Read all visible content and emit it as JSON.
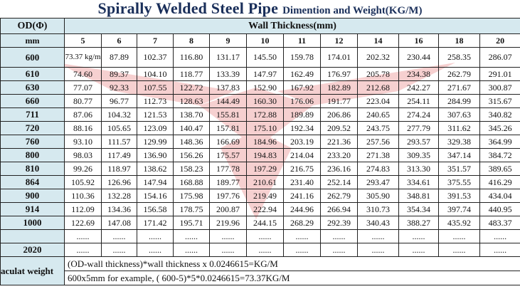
{
  "title": {
    "main": "Spirally Welded Steel Pipe",
    "sub": "Dimention and Weight(KG/M)"
  },
  "table": {
    "od_header": "OD(Φ)",
    "od_unit": "mm",
    "wall_header": "Wall Thickness(mm)",
    "wall_sizes": [
      "5",
      "6",
      "7",
      "8",
      "9",
      "10",
      "11",
      "12",
      "14",
      "16",
      "18",
      "20"
    ],
    "rows": [
      {
        "od": "600",
        "values": [
          "73.37 kg/m",
          "87.89",
          "102.37",
          "116.80",
          "131.17",
          "145.50",
          "159.78",
          "174.01",
          "202.32",
          "230.44",
          "258.35",
          "286.07"
        ]
      },
      {
        "od": "610",
        "values": [
          "74.60",
          "89.37",
          "104.10",
          "118.77",
          "133.39",
          "147.97",
          "162.49",
          "176.97",
          "205.78",
          "234.38",
          "262.79",
          "291.01"
        ]
      },
      {
        "od": "630",
        "values": [
          "77.07",
          "92.33",
          "107.55",
          "122.72",
          "137.83",
          "152.90",
          "167.92",
          "182.89",
          "212.68",
          "242.27",
          "271.67",
          "300.87"
        ]
      },
      {
        "od": "660",
        "values": [
          "80.77",
          "96.77",
          "112.73",
          "128.63",
          "144.49",
          "160.30",
          "176.06",
          "191.77",
          "223.04",
          "254.11",
          "284.99",
          "315.67"
        ]
      },
      {
        "od": "711",
        "values": [
          "87.06",
          "104.32",
          "121.53",
          "138.70",
          "155.81",
          "172.88",
          "189.89",
          "206.86",
          "240.65",
          "274.24",
          "307.63",
          "340.82"
        ]
      },
      {
        "od": "720",
        "values": [
          "88.16",
          "105.65",
          "123.09",
          "140.47",
          "157.81",
          "175.10",
          "192.34",
          "209.52",
          "243.75",
          "277.79",
          "311.62",
          "345.26"
        ]
      },
      {
        "od": "760",
        "values": [
          "93.10",
          "111.57",
          "129.99",
          "148.36",
          "166.69",
          "184.96",
          "203.19",
          "221.36",
          "257.56",
          "293.57",
          "329.38",
          "364.99"
        ]
      },
      {
        "od": "800",
        "values": [
          "98.03",
          "117.49",
          "136.90",
          "156.26",
          "175.57",
          "194.83",
          "214.04",
          "233.20",
          "271.38",
          "309.35",
          "347.14",
          "384.72"
        ]
      },
      {
        "od": "810",
        "values": [
          "99.26",
          "118.97",
          "138.62",
          "158.23",
          "177.78",
          "197.29",
          "216.75",
          "236.16",
          "274.83",
          "313.30",
          "351.57",
          "389.65"
        ]
      },
      {
        "od": "864",
        "values": [
          "105.92",
          "126.96",
          "147.94",
          "168.88",
          "189.77",
          "210.61",
          "231.40",
          "252.14",
          "293.47",
          "334.61",
          "375.55",
          "416.29"
        ]
      },
      {
        "od": "900",
        "values": [
          "110.36",
          "132.28",
          "154.16",
          "175.98",
          "197.76",
          "219.49",
          "241.16",
          "262.79",
          "305.90",
          "348.81",
          "391.53",
          "434.04"
        ]
      },
      {
        "od": "914",
        "values": [
          "112.09",
          "134.36",
          "156.58",
          "178.75",
          "200.87",
          "222.94",
          "244.96",
          "266.94",
          "310.73",
          "354.34",
          "397.74",
          "440.95"
        ]
      },
      {
        "od": "1000",
        "values": [
          "122.69",
          "147.08",
          "171.42",
          "195.71",
          "219.96",
          "244.15",
          "268.29",
          "292.39",
          "340.43",
          "388.27",
          "435.92",
          "483.37"
        ]
      },
      {
        "od": "",
        "values": [
          "......",
          "......",
          "......",
          "......",
          "......",
          "......",
          "......",
          "......",
          "......",
          "......",
          "......",
          "......"
        ]
      },
      {
        "od": "2020",
        "values": [
          "......",
          "......",
          "......",
          "......",
          "......",
          "......",
          "......",
          "......",
          "......",
          "......",
          "......",
          "......"
        ]
      }
    ],
    "calc_label": "aculat weight",
    "formula": "(OD-wall thickness)*wall thickness x 0.0246615=KG/M",
    "example": "600x5mm for example, ( 600-5)*5*0.0246615=73.37KG/M"
  }
}
